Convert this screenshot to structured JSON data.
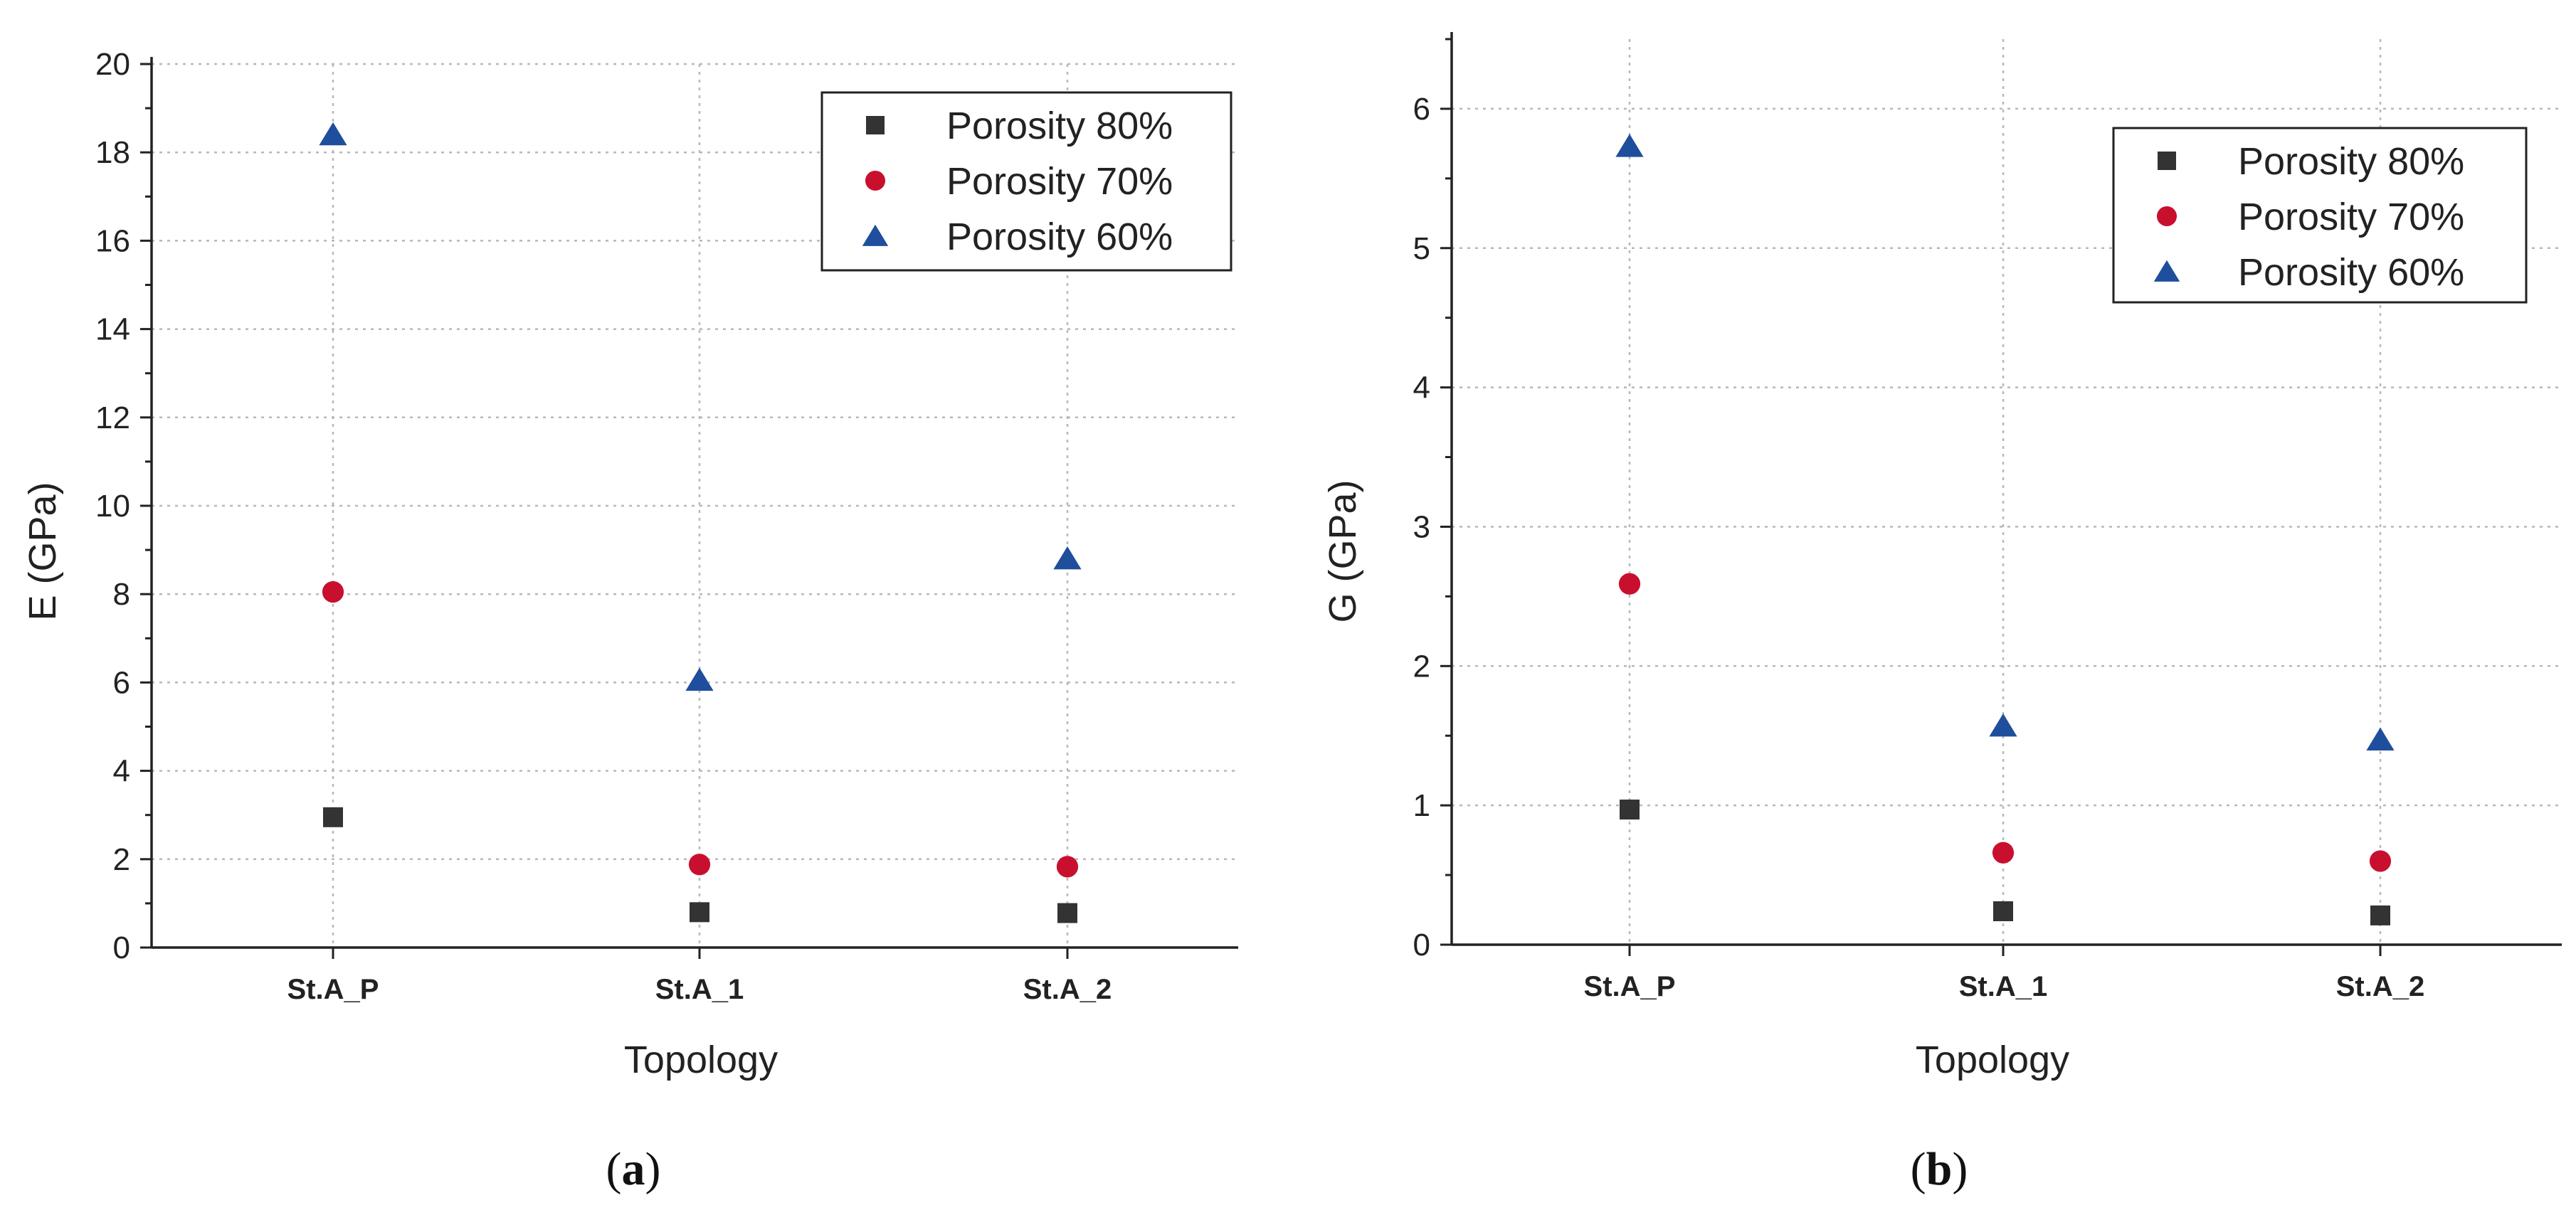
{
  "chart_data": [
    {
      "type": "scatter",
      "panel_label": "a",
      "xlabel": "Topology",
      "ylabel": "E (GPa)",
      "categories": [
        "St.A_P",
        "St.A_1",
        "St.A_2"
      ],
      "ylim": [
        0,
        20
      ],
      "yticks": [
        0,
        2,
        4,
        6,
        8,
        10,
        12,
        14,
        16,
        18,
        20
      ],
      "grid": true,
      "legend_position": "top-right",
      "series": [
        {
          "name": "Porosity 80%",
          "marker": "square",
          "color": "#333333",
          "values": [
            2.95,
            0.8,
            0.78
          ]
        },
        {
          "name": "Porosity 70%",
          "marker": "circle",
          "color": "#c8102e",
          "values": [
            8.05,
            1.88,
            1.83
          ]
        },
        {
          "name": "Porosity 60%",
          "marker": "triangle",
          "color": "#1f4e9c",
          "values": [
            18.4,
            6.05,
            8.8
          ]
        }
      ]
    },
    {
      "type": "scatter",
      "panel_label": "b",
      "xlabel": "Topology",
      "ylabel": "G (GPa)",
      "categories": [
        "St.A_P",
        "St.A_1",
        "St.A_2"
      ],
      "ylim": [
        0,
        6.5
      ],
      "yticks": [
        0,
        1,
        2,
        3,
        4,
        5,
        6
      ],
      "grid": true,
      "legend_position": "top-right",
      "series": [
        {
          "name": "Porosity 80%",
          "marker": "square",
          "color": "#333333",
          "values": [
            0.97,
            0.24,
            0.21
          ]
        },
        {
          "name": "Porosity 70%",
          "marker": "circle",
          "color": "#c8102e",
          "values": [
            2.59,
            0.66,
            0.6
          ]
        },
        {
          "name": "Porosity 60%",
          "marker": "triangle",
          "color": "#1f4e9c",
          "values": [
            5.73,
            1.57,
            1.47
          ]
        }
      ]
    }
  ]
}
